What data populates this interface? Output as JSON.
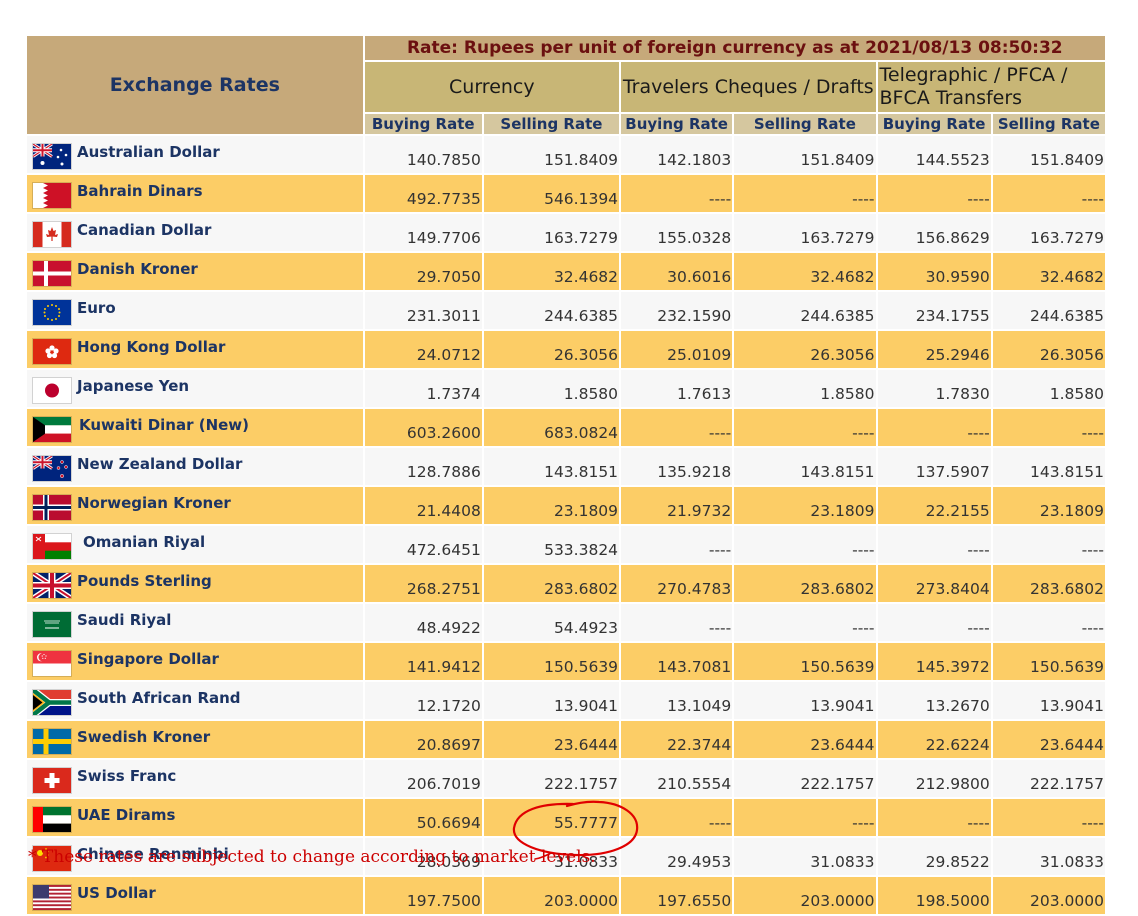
{
  "header": {
    "title": "Exchange Rates",
    "rate_caption": "Rate: Rupees per unit of foreign currency as at 2021/08/13  08:50:32",
    "groups": {
      "currency": "Currency",
      "travelers": "Travelers Cheques / Drafts",
      "telegraphic": "Telegraphic / PFCA / BFCA Transfers"
    },
    "buying": "Buying Rate",
    "selling": "Selling Rate"
  },
  "rows": [
    {
      "name": "Australian Dollar",
      "flag": "au-flag-icon",
      "cur_buy": "140.7850",
      "cur_sell": "151.8409",
      "tc_buy": "142.1803",
      "tc_sell": "151.8409",
      "tt_buy": "144.5523",
      "tt_sell": "151.8409"
    },
    {
      "name": "Bahrain Dinars",
      "flag": "bh-flag-icon",
      "cur_buy": "492.7735",
      "cur_sell": "546.1394",
      "tc_buy": "----",
      "tc_sell": "----",
      "tt_buy": "----",
      "tt_sell": "----"
    },
    {
      "name": "Canadian Dollar",
      "flag": "ca-flag-icon",
      "cur_buy": "149.7706",
      "cur_sell": "163.7279",
      "tc_buy": "155.0328",
      "tc_sell": "163.7279",
      "tt_buy": "156.8629",
      "tt_sell": "163.7279"
    },
    {
      "name": "Danish Kroner",
      "flag": "dk-flag-icon",
      "cur_buy": "29.7050",
      "cur_sell": "32.4682",
      "tc_buy": "30.6016",
      "tc_sell": "32.4682",
      "tt_buy": "30.9590",
      "tt_sell": "32.4682"
    },
    {
      "name": "Euro",
      "flag": "eu-flag-icon",
      "cur_buy": "231.3011",
      "cur_sell": "244.6385",
      "tc_buy": "232.1590",
      "tc_sell": "244.6385",
      "tt_buy": "234.1755",
      "tt_sell": "244.6385"
    },
    {
      "name": "Hong Kong Dollar",
      "flag": "hk-flag-icon",
      "cur_buy": "24.0712",
      "cur_sell": "26.3056",
      "tc_buy": "25.0109",
      "tc_sell": "26.3056",
      "tt_buy": "25.2946",
      "tt_sell": "26.3056"
    },
    {
      "name": "Japanese Yen",
      "flag": "jp-flag-icon",
      "cur_buy": "1.7374",
      "cur_sell": "1.8580",
      "tc_buy": "1.7613",
      "tc_sell": "1.8580",
      "tt_buy": "1.7830",
      "tt_sell": "1.8580"
    },
    {
      "name": "Kuwaiti Dinar (New)",
      "flag": "kw-flag-icon",
      "cur_buy": "603.2600",
      "cur_sell": "683.0824",
      "tc_buy": "----",
      "tc_sell": "----",
      "tt_buy": "----",
      "tt_sell": "----"
    },
    {
      "name": "New Zealand Dollar",
      "flag": "nz-flag-icon",
      "cur_buy": "128.7886",
      "cur_sell": "143.8151",
      "tc_buy": "135.9218",
      "tc_sell": "143.8151",
      "tt_buy": "137.5907",
      "tt_sell": "143.8151"
    },
    {
      "name": "Norwegian Kroner",
      "flag": "no-flag-icon",
      "cur_buy": "21.4408",
      "cur_sell": "23.1809",
      "tc_buy": "21.9732",
      "tc_sell": "23.1809",
      "tt_buy": "22.2155",
      "tt_sell": "23.1809"
    },
    {
      "name": "Omanian Riyal",
      "flag": "om-flag-icon",
      "cur_buy": "472.6451",
      "cur_sell": "533.3824",
      "tc_buy": "----",
      "tc_sell": "----",
      "tt_buy": "----",
      "tt_sell": "----"
    },
    {
      "name": "Pounds Sterling",
      "flag": "gb-flag-icon",
      "cur_buy": "268.2751",
      "cur_sell": "283.6802",
      "tc_buy": "270.4783",
      "tc_sell": "283.6802",
      "tt_buy": "273.8404",
      "tt_sell": "283.6802"
    },
    {
      "name": "Saudi Riyal",
      "flag": "sa-flag-icon",
      "cur_buy": "48.4922",
      "cur_sell": "54.4923",
      "tc_buy": "----",
      "tc_sell": "----",
      "tt_buy": "----",
      "tt_sell": "----"
    },
    {
      "name": "Singapore Dollar",
      "flag": "sg-flag-icon",
      "cur_buy": "141.9412",
      "cur_sell": "150.5639",
      "tc_buy": "143.7081",
      "tc_sell": "150.5639",
      "tt_buy": "145.3972",
      "tt_sell": "150.5639"
    },
    {
      "name": "South African Rand",
      "flag": "za-flag-icon",
      "cur_buy": "12.1720",
      "cur_sell": "13.9041",
      "tc_buy": "13.1049",
      "tc_sell": "13.9041",
      "tt_buy": "13.2670",
      "tt_sell": "13.9041"
    },
    {
      "name": "Swedish Kroner",
      "flag": "se-flag-icon",
      "cur_buy": "20.8697",
      "cur_sell": "23.6444",
      "tc_buy": "22.3744",
      "tc_sell": "23.6444",
      "tt_buy": "22.6224",
      "tt_sell": "23.6444"
    },
    {
      "name": "Swiss Franc",
      "flag": "ch-flag-icon",
      "cur_buy": "206.7019",
      "cur_sell": "222.1757",
      "tc_buy": "210.5554",
      "tc_sell": "222.1757",
      "tt_buy": "212.9800",
      "tt_sell": "222.1757"
    },
    {
      "name": "UAE Dirams",
      "flag": "ae-flag-icon",
      "cur_buy": "50.6694",
      "cur_sell": "55.7777",
      "tc_buy": "----",
      "tc_sell": "----",
      "tt_buy": "----",
      "tt_sell": "----"
    },
    {
      "name": "Chinese Renminbi",
      "flag": "cn-flag-icon",
      "cur_buy": "28.0369",
      "cur_sell": "31.0833",
      "tc_buy": "29.4953",
      "tc_sell": "31.0833",
      "tt_buy": "29.8522",
      "tt_sell": "31.0833"
    },
    {
      "name": "US Dollar",
      "flag": "us-flag-icon",
      "cur_buy": "197.7500",
      "cur_sell": "203.0000",
      "tc_buy": "197.6550",
      "tc_sell": "203.0000",
      "tt_buy": "198.5000",
      "tt_sell": "203.0000"
    }
  ],
  "footnote": "* These rates are subjected to change according to market levels.",
  "colors": {
    "title_bg": "#c6a97a",
    "group_bg": "#c8b676",
    "sub_bg": "#d5c79f",
    "row_odd": "#f7f7f7",
    "row_even": "#fccd66",
    "annotation": "#e00000"
  }
}
